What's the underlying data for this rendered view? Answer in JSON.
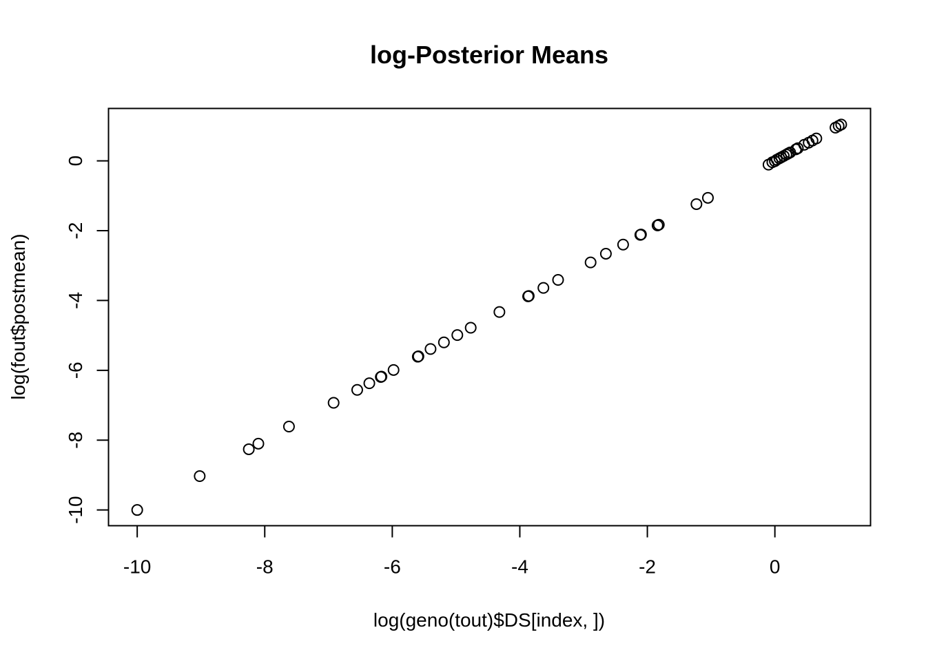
{
  "chart_data": {
    "type": "scatter",
    "title": "log-Posterior Means",
    "xlabel": "log(geno(tout)$DS[index, ])",
    "ylabel": "log(fout$postmean)",
    "xlim": [
      -10.45,
      1.5
    ],
    "ylim": [
      -10.45,
      1.5
    ],
    "x_ticks": [
      -10,
      -8,
      -6,
      -4,
      -2,
      0
    ],
    "y_ticks": [
      -10,
      -8,
      -6,
      -4,
      -2,
      0
    ],
    "x_tick_labels": [
      "-10",
      "-8",
      "-6",
      "-4",
      "-2",
      "0"
    ],
    "y_tick_labels": [
      "-10",
      "-8",
      "-6",
      "-4",
      "-2",
      "0"
    ],
    "grid": false,
    "legend": "none",
    "marker": "open-circle",
    "color": "#000000",
    "points": [
      [
        -10.0,
        -10.0
      ],
      [
        -9.02,
        -9.03
      ],
      [
        -8.25,
        -8.26
      ],
      [
        -8.1,
        -8.1
      ],
      [
        -7.62,
        -7.61
      ],
      [
        -6.92,
        -6.93
      ],
      [
        -6.55,
        -6.56
      ],
      [
        -6.36,
        -6.37
      ],
      [
        -6.18,
        -6.19
      ],
      [
        -6.17,
        -6.18
      ],
      [
        -5.98,
        -5.99
      ],
      [
        -5.6,
        -5.61
      ],
      [
        -5.59,
        -5.6
      ],
      [
        -5.4,
        -5.39
      ],
      [
        -5.19,
        -5.2
      ],
      [
        -4.98,
        -4.99
      ],
      [
        -4.77,
        -4.78
      ],
      [
        -4.32,
        -4.33
      ],
      [
        -3.87,
        -3.88
      ],
      [
        -3.86,
        -3.87
      ],
      [
        -3.63,
        -3.64
      ],
      [
        -3.4,
        -3.41
      ],
      [
        -2.89,
        -2.91
      ],
      [
        -2.65,
        -2.66
      ],
      [
        -2.38,
        -2.4
      ],
      [
        -2.11,
        -2.12
      ],
      [
        -2.1,
        -2.11
      ],
      [
        -1.84,
        -1.85
      ],
      [
        -1.82,
        -1.83
      ],
      [
        -1.23,
        -1.24
      ],
      [
        -1.05,
        -1.06
      ],
      [
        -0.1,
        -0.11
      ],
      [
        -0.04,
        -0.04
      ],
      [
        0.0,
        -0.01
      ],
      [
        0.03,
        0.03
      ],
      [
        0.07,
        0.07
      ],
      [
        0.1,
        0.1
      ],
      [
        0.14,
        0.14
      ],
      [
        0.18,
        0.18
      ],
      [
        0.21,
        0.21
      ],
      [
        0.24,
        0.24
      ],
      [
        0.33,
        0.33
      ],
      [
        0.36,
        0.36
      ],
      [
        0.46,
        0.46
      ],
      [
        0.53,
        0.52
      ],
      [
        0.59,
        0.58
      ],
      [
        0.65,
        0.64
      ],
      [
        0.95,
        0.95
      ],
      [
        1.0,
        1.0
      ],
      [
        1.04,
        1.04
      ]
    ]
  }
}
